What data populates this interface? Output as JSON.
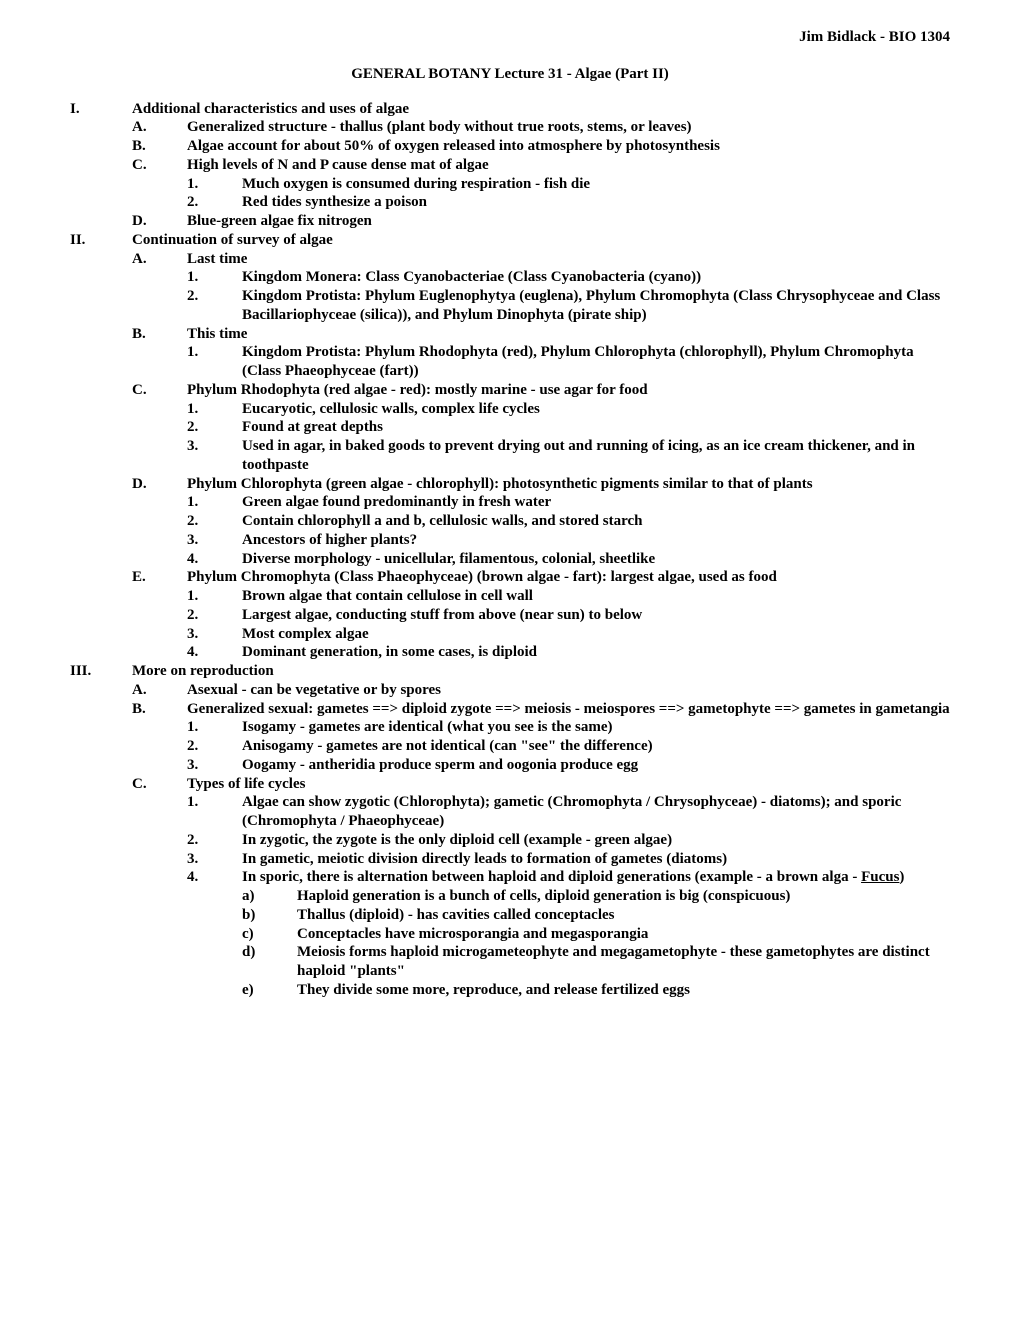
{
  "header": "Jim Bidlack - BIO 1304",
  "title": "GENERAL BOTANY   Lecture 31 - Algae (Part II)",
  "outline": {
    "I": {
      "text": "Additional characteristics and uses of algae",
      "items": {
        "A": {
          "text": "Generalized structure - thallus (plant body without true roots, stems, or leaves)"
        },
        "B": {
          "text": "Algae account for about 50% of oxygen released into atmosphere by photosynthesis"
        },
        "C": {
          "text": "High levels of N and P cause dense mat of algae",
          "items": {
            "1": {
              "text": "Much oxygen is consumed during respiration - fish die"
            },
            "2": {
              "text": "Red tides synthesize a poison"
            }
          }
        },
        "D": {
          "text": "Blue-green algae fix nitrogen"
        }
      }
    },
    "II": {
      "text": "Continuation of survey of algae",
      "items": {
        "A": {
          "text": "Last time",
          "items": {
            "1": {
              "text": "Kingdom Monera: Class Cyanobacteriae (Class Cyanobacteria (cyano))"
            },
            "2": {
              "text": "Kingdom Protista: Phylum Euglenophytya (euglena), Phylum Chromophyta (Class Chrysophyceae and Class Bacillariophyceae (silica)), and Phylum Dinophyta (pirate ship)"
            }
          }
        },
        "B": {
          "text": "This time",
          "items": {
            "1": {
              "text": "Kingdom Protista: Phylum Rhodophyta (red), Phylum Chlorophyta (chlorophyll), Phylum Chromophyta (Class Phaeophyceae (fart))"
            }
          }
        },
        "C": {
          "text": "Phylum Rhodophyta (red algae - red): mostly marine - use agar for food",
          "items": {
            "1": {
              "text": "Eucaryotic, cellulosic walls, complex life cycles"
            },
            "2": {
              "text": "Found at great depths"
            },
            "3": {
              "text": "Used in agar, in baked goods to prevent drying out and running of icing, as an ice cream thickener, and in toothpaste"
            }
          }
        },
        "D": {
          "text": "Phylum Chlorophyta (green algae - chlorophyll): photosynthetic pigments similar to that of plants",
          "items": {
            "1": {
              "text": "Green algae found predominantly in fresh water"
            },
            "2": {
              "text": "Contain chlorophyll a and b, cellulosic walls, and stored starch"
            },
            "3": {
              "text": "Ancestors of higher plants?"
            },
            "4": {
              "text": "Diverse morphology - unicellular, filamentous, colonial, sheetlike"
            }
          }
        },
        "E": {
          "text": "Phylum Chromophyta (Class Phaeophyceae) (brown algae - fart): largest algae, used as food",
          "items": {
            "1": {
              "text": "Brown algae that contain cellulose in cell wall"
            },
            "2": {
              "text": "Largest algae, conducting stuff from above (near sun) to below"
            },
            "3": {
              "text": "Most complex algae"
            },
            "4": {
              "text": "Dominant generation, in some cases, is diploid"
            }
          }
        }
      }
    },
    "III": {
      "text": "More on reproduction",
      "items": {
        "A": {
          "text": "Asexual - can be vegetative or by spores"
        },
        "B": {
          "text": "Generalized sexual:  gametes ==> diploid zygote ==> meiosis - meiospores ==> gametophyte ==> gametes in gametangia",
          "items": {
            "1": {
              "text": "Isogamy - gametes are identical (what you see is the same)"
            },
            "2": {
              "text": "Anisogamy - gametes are not identical (can \"see\" the difference)"
            },
            "3": {
              "text": "Oogamy - antheridia produce sperm and oogonia produce egg"
            }
          }
        },
        "C": {
          "text": "Types of life cycles",
          "items": {
            "1": {
              "text": "Algae can show zygotic (Chlorophyta); gametic (Chromophyta / Chrysophyceae) - diatoms); and sporic (Chromophyta / Phaeophyceae)"
            },
            "2": {
              "text": "In zygotic, the zygote is the only diploid cell (example - green algae)"
            },
            "3": {
              "text": "In gametic, meiotic division directly leads to formation of gametes (diatoms)"
            },
            "4": {
              "text_pre": "In sporic, there is alternation between haploid and diploid generations (example - a brown alga - ",
              "text_underline": "Fucus",
              "text_post": ")",
              "items": {
                "a": {
                  "text": "Haploid generation is a bunch of cells, diploid generation is big (conspicuous)"
                },
                "b": {
                  "text": "Thallus (diploid) - has cavities called conceptacles"
                },
                "c": {
                  "text": "Conceptacles have microsporangia and megasporangia"
                },
                "d": {
                  "text": "Meiosis forms haploid microgameteophyte and megagametophyte - these gametophytes are distinct haploid \"plants\""
                },
                "e": {
                  "text": "They divide some more, reproduce, and release fertilized eggs"
                }
              }
            }
          }
        }
      }
    }
  },
  "labels": {
    "I": "I.",
    "II": "II.",
    "III": "III.",
    "A": "A.",
    "B": "B.",
    "C": "C.",
    "D": "D.",
    "E": "E.",
    "n1": "1.",
    "n2": "2.",
    "n3": "3.",
    "n4": "4.",
    "sa": "a)",
    "sb": "b)",
    "sc": "c)",
    "sd": "d)",
    "se": "e)"
  }
}
